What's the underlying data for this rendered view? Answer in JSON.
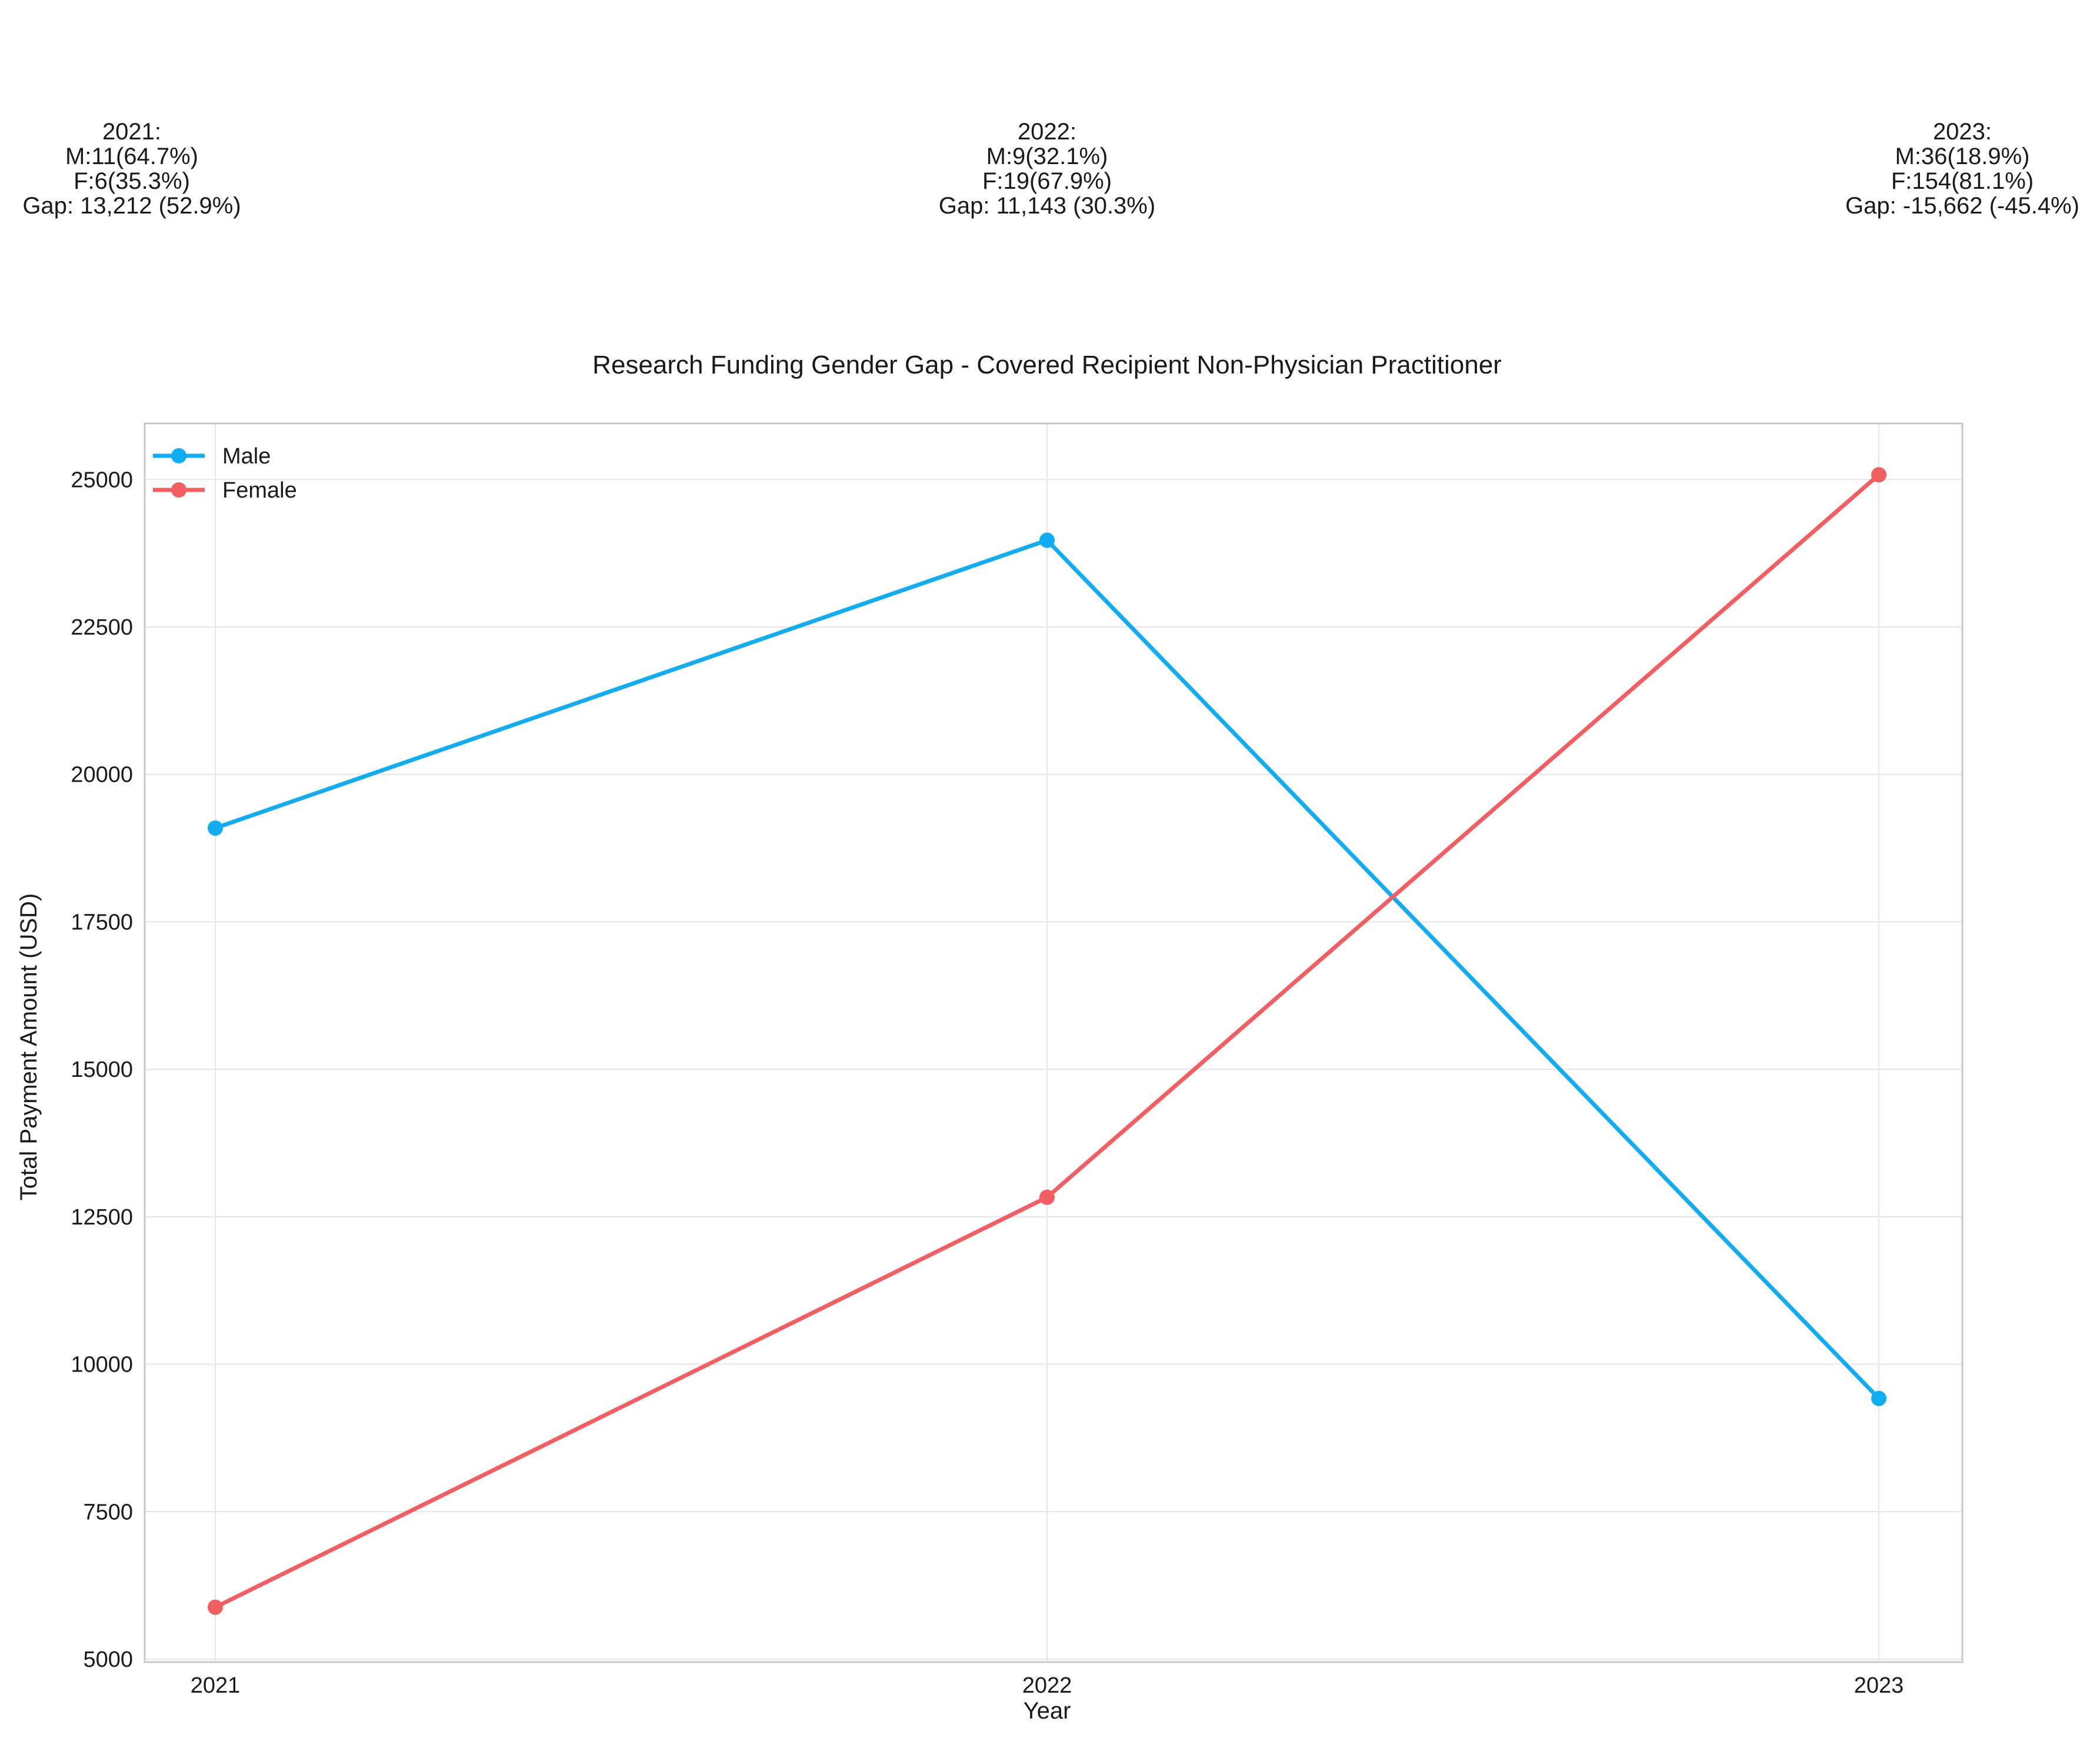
{
  "chart_data": {
    "type": "line",
    "title": "Research Funding Gender Gap - Covered Recipient Non-Physician Practitioner",
    "xlabel": "Year",
    "ylabel": "Total Payment Amount (USD)",
    "categories": [
      "2021",
      "2022",
      "2023"
    ],
    "ylim": [
      4950,
      25950
    ],
    "yticks": [
      5000,
      7500,
      10000,
      12500,
      15000,
      17500,
      20000,
      22500,
      25000
    ],
    "grid": true,
    "legend_position": "top-left",
    "series": [
      {
        "name": "Male",
        "color": "#10adf2",
        "values": [
          19090,
          23970,
          9420
        ]
      },
      {
        "name": "Female",
        "color": "#f25e61",
        "values": [
          5880,
          12830,
          25080
        ]
      }
    ],
    "annotations": [
      {
        "year": "2021",
        "lines": [
          "2021:",
          "M:11(64.7%)",
          "F:6(35.3%)",
          "Gap: 13,212 (52.9%)"
        ]
      },
      {
        "year": "2022",
        "lines": [
          "2022:",
          "M:9(32.1%)",
          "F:19(67.9%)",
          "Gap: 11,143 (30.3%)"
        ]
      },
      {
        "year": "2023",
        "lines": [
          "2023:",
          "M:36(18.9%)",
          "F:154(81.1%)",
          "Gap: -15,662 (-45.4%)"
        ]
      }
    ]
  }
}
